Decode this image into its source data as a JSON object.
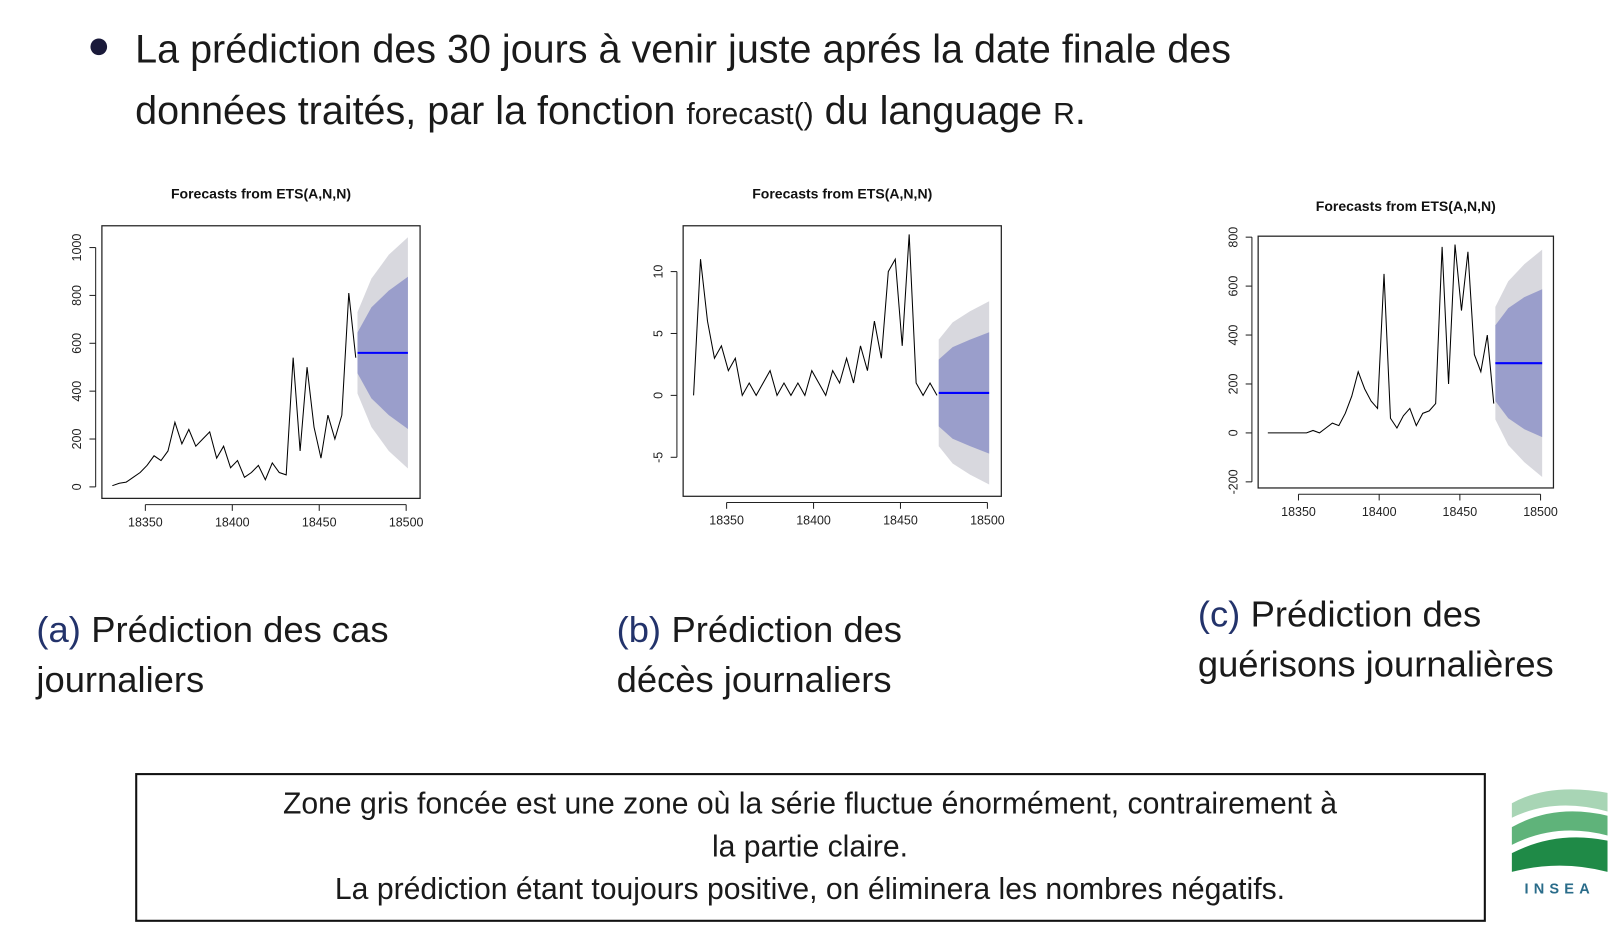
{
  "bullet": [
    "La prédiction des 30 jours à venir juste aprés la date finale des",
    "données traités, par la fonction ",
    "forecast()",
    " du language ",
    "R",
    "."
  ],
  "chart_data": [
    {
      "type": "line",
      "title": "Forecasts from ETS(A,N,N)",
      "x": [
        18331,
        18335,
        18339,
        18343,
        18347,
        18351,
        18355,
        18359,
        18363,
        18367,
        18371,
        18375,
        18379,
        18383,
        18387,
        18391,
        18395,
        18399,
        18403,
        18407,
        18411,
        18415,
        18419,
        18423,
        18427,
        18431,
        18435,
        18439,
        18443,
        18447,
        18451,
        18455,
        18459,
        18463,
        18467,
        18471
      ],
      "values": [
        5,
        15,
        20,
        40,
        60,
        90,
        130,
        110,
        150,
        270,
        180,
        240,
        170,
        200,
        230,
        120,
        170,
        80,
        110,
        40,
        60,
        90,
        30,
        100,
        60,
        50,
        540,
        150,
        500,
        250,
        120,
        300,
        200,
        300,
        810,
        540
      ],
      "forecast": {
        "x": [
          18472,
          18480,
          18490,
          18501
        ],
        "mean": [
          560,
          560,
          560,
          560
        ],
        "lo80": [
          475,
          370,
          300,
          242
        ],
        "hi80": [
          645,
          750,
          820,
          878
        ],
        "lo95": [
          390,
          250,
          150,
          77
        ],
        "hi95": [
          730,
          870,
          970,
          1043
        ]
      },
      "line_color": "#000000",
      "mean_color": "#0000ff",
      "band80_color": "#9a9ecb",
      "band95_color": "#d8d8de",
      "xlim": [
        18325,
        18508
      ],
      "ylim": [
        -48,
        1091
      ],
      "xticks": [
        18350,
        18400,
        18450,
        18500
      ],
      "yticks": [
        0,
        200,
        400,
        600,
        800,
        1000
      ]
    },
    {
      "type": "line",
      "title": "Forecasts from ETS(A,N,N)",
      "x": [
        18331,
        18335,
        18339,
        18343,
        18347,
        18351,
        18355,
        18359,
        18363,
        18367,
        18371,
        18375,
        18379,
        18383,
        18387,
        18391,
        18395,
        18399,
        18403,
        18407,
        18411,
        18415,
        18419,
        18423,
        18427,
        18431,
        18435,
        18439,
        18443,
        18447,
        18451,
        18455,
        18459,
        18463,
        18467,
        18471
      ],
      "values": [
        0,
        11,
        6,
        3,
        4,
        2,
        3,
        0,
        1,
        0,
        1,
        2,
        0,
        1,
        0,
        1,
        0,
        2,
        1,
        0,
        2,
        1,
        3,
        1,
        4,
        2,
        6,
        3,
        10,
        11,
        4,
        13,
        1,
        0,
        1,
        0
      ],
      "forecast": {
        "x": [
          18472,
          18480,
          18490,
          18501
        ],
        "mean": [
          0.2,
          0.2,
          0.2,
          0.2
        ],
        "lo80": [
          -2.5,
          -3.5,
          -4.1,
          -4.7
        ],
        "hi80": [
          2.9,
          3.9,
          4.5,
          5.1
        ],
        "lo95": [
          -4.1,
          -5.5,
          -6.4,
          -7.2
        ],
        "hi95": [
          4.5,
          5.9,
          6.8,
          7.6
        ]
      },
      "line_color": "#000000",
      "mean_color": "#0000ff",
      "band80_color": "#9a9ecb",
      "band95_color": "#d8d8de",
      "xlim": [
        18325,
        18508
      ],
      "ylim": [
        -8.15,
        13.7
      ],
      "xticks": [
        18350,
        18400,
        18450,
        18500
      ],
      "yticks": [
        -5,
        0,
        5,
        10
      ]
    },
    {
      "type": "line",
      "title": "Forecasts from ETS(A,N,N)",
      "x": [
        18331,
        18335,
        18339,
        18343,
        18347,
        18351,
        18355,
        18359,
        18363,
        18367,
        18371,
        18375,
        18379,
        18383,
        18387,
        18391,
        18395,
        18399,
        18403,
        18407,
        18411,
        18415,
        18419,
        18423,
        18427,
        18431,
        18435,
        18439,
        18443,
        18447,
        18451,
        18455,
        18459,
        18463,
        18467,
        18471
      ],
      "values": [
        0,
        0,
        0,
        0,
        0,
        0,
        0,
        10,
        0,
        20,
        40,
        30,
        80,
        150,
        250,
        180,
        130,
        100,
        650,
        60,
        20,
        70,
        100,
        30,
        80,
        90,
        120,
        760,
        200,
        770,
        500,
        740,
        320,
        250,
        400,
        120
      ],
      "forecast": {
        "x": [
          18472,
          18480,
          18490,
          18501
        ],
        "mean": [
          285,
          285,
          285,
          285
        ],
        "lo80": [
          130,
          60,
          15,
          -17
        ],
        "hi80": [
          440,
          510,
          555,
          587
        ],
        "lo95": [
          55,
          -50,
          -120,
          -180
        ],
        "hi95": [
          515,
          620,
          690,
          749
        ]
      },
      "line_color": "#000000",
      "mean_color": "#0000ff",
      "band80_color": "#9a9ecb",
      "band95_color": "#d8d8de",
      "xlim": [
        18325,
        18508
      ],
      "ylim": [
        -225,
        804
      ],
      "xticks": [
        18350,
        18400,
        18450,
        18500
      ],
      "yticks": [
        -200,
        0,
        200,
        400,
        600,
        800
      ]
    }
  ],
  "captions": [
    {
      "label": "(a)",
      "lines": [
        "Prédiction des cas",
        "journaliers"
      ]
    },
    {
      "label": "(b)",
      "lines": [
        "Prédiction des",
        "décès journaliers"
      ]
    },
    {
      "label": "(c)",
      "lines": [
        "Prédiction des",
        "guérisons journalières"
      ]
    }
  ],
  "note": [
    "Zone gris foncée est une zone où la série fluctue énormément, contrairement à",
    "la partie claire.",
    "La prédiction étant toujours positive, on éliminera les nombres négatifs."
  ],
  "logo": "INSEA"
}
